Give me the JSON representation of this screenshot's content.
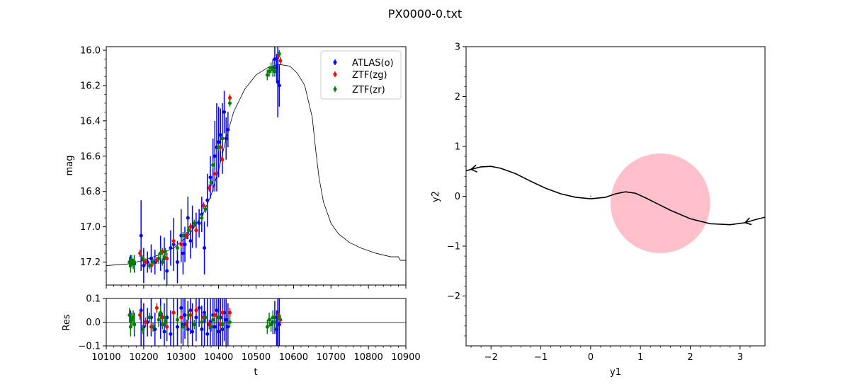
{
  "figure": {
    "title": "PX0000-0.txt"
  },
  "colors": {
    "atlas": "#0000ff",
    "zg": "#ff0000",
    "zr": "#008000",
    "model": "#000000",
    "source": "#ffc0cb",
    "traj": "#000000"
  },
  "chart_data": [
    {
      "type": "scatter",
      "panel": "light-curve",
      "xlabel": "",
      "ylabel": "mag",
      "xlim": [
        10100,
        10900
      ],
      "ylim": [
        17.33,
        15.98
      ],
      "inverted_y": true,
      "yticks": [
        "16.0",
        "16.2",
        "16.4",
        "16.6",
        "16.8",
        "17.0",
        "17.2"
      ],
      "legend": {
        "placement": "top-right",
        "entries": [
          "ATLAS(o)",
          "ZTF(zg)",
          "ZTF(zr)"
        ]
      },
      "model": {
        "name": "",
        "x": [
          10100,
          10160,
          10200,
          10240,
          10280,
          10320,
          10360,
          10380,
          10400,
          10420,
          10440,
          10470,
          10500,
          10530,
          10560,
          10590,
          10610,
          10630,
          10650,
          10660,
          10668,
          10680,
          10700,
          10720,
          10750,
          10780,
          10820,
          10860,
          10880,
          10885,
          10900
        ],
        "y": [
          17.22,
          17.21,
          17.19,
          17.16,
          17.12,
          17.05,
          16.92,
          16.82,
          16.68,
          16.5,
          16.35,
          16.22,
          16.14,
          16.1,
          16.08,
          16.09,
          16.13,
          16.2,
          16.38,
          16.58,
          16.72,
          16.86,
          16.98,
          17.04,
          17.09,
          17.12,
          17.15,
          17.17,
          17.17,
          17.19,
          17.19
        ]
      },
      "series": [
        {
          "name": "ATLAS(o)",
          "x": [
            10165,
            10175,
            10193,
            10200,
            10210,
            10220,
            10230,
            10245,
            10255,
            10262,
            10272,
            10280,
            10290,
            10300,
            10305,
            10310,
            10318,
            10325,
            10330,
            10340,
            10348,
            10355,
            10362,
            10370,
            10378,
            10385,
            10390,
            10395,
            10400,
            10405,
            10410,
            10415,
            10420,
            10425,
            10545,
            10550,
            10555,
            10558,
            10562
          ],
          "y": [
            17.2,
            17.21,
            17.05,
            17.22,
            17.2,
            17.18,
            17.2,
            17.15,
            17.18,
            17.25,
            17.12,
            17.1,
            17.2,
            17.05,
            17.15,
            17.1,
            16.95,
            17.08,
            17.0,
            17.02,
            16.98,
            16.93,
            17.12,
            16.85,
            16.72,
            16.65,
            16.6,
            16.55,
            16.52,
            16.48,
            16.5,
            16.35,
            16.5,
            16.45,
            16.1,
            16.05,
            16.1,
            16.18,
            16.2
          ],
          "err": [
            0.04,
            0.05,
            0.2,
            0.1,
            0.06,
            0.08,
            0.07,
            0.1,
            0.12,
            0.1,
            0.1,
            0.15,
            0.12,
            0.15,
            0.12,
            0.1,
            0.12,
            0.1,
            0.12,
            0.1,
            0.08,
            0.1,
            0.15,
            0.15,
            0.12,
            0.15,
            0.2,
            0.25,
            0.2,
            0.15,
            0.2,
            0.12,
            0.12,
            0.1,
            0.05,
            0.07,
            0.08,
            0.2,
            0.12
          ]
        },
        {
          "name": "ZTF(zg)",
          "x": [
            10190,
            10205,
            10220,
            10235,
            10250,
            10262,
            10280,
            10300,
            10315,
            10325,
            10340,
            10360,
            10375,
            10390,
            10405,
            10410,
            10430,
            10560,
            10565
          ],
          "y": [
            17.15,
            17.2,
            17.22,
            17.19,
            17.14,
            17.18,
            17.08,
            17.1,
            17.05,
            17.0,
            17.02,
            16.88,
            16.78,
            16.7,
            16.55,
            16.62,
            16.27,
            16.03,
            16.06
          ],
          "err": [
            0.02,
            0.02,
            0.02,
            0.02,
            0.02,
            0.02,
            0.02,
            0.02,
            0.02,
            0.02,
            0.02,
            0.02,
            0.02,
            0.02,
            0.02,
            0.02,
            0.02,
            0.02,
            0.02
          ]
        },
        {
          "name": "ZTF(zr)",
          "x": [
            10162,
            10165,
            10168,
            10172,
            10175,
            10198,
            10215,
            10225,
            10240,
            10245,
            10250,
            10255,
            10258,
            10290,
            10305,
            10320,
            10335,
            10355,
            10365,
            10380,
            10385,
            10400,
            10410,
            10430,
            10530,
            10535,
            10540,
            10545,
            10550,
            10562
          ],
          "y": [
            17.2,
            17.22,
            17.19,
            17.21,
            17.2,
            17.18,
            17.22,
            17.2,
            17.18,
            17.15,
            17.2,
            17.17,
            17.14,
            17.12,
            17.05,
            17.02,
            16.98,
            16.95,
            16.9,
            16.75,
            16.65,
            16.55,
            16.5,
            16.3,
            16.14,
            16.12,
            16.1,
            16.11,
            16.12,
            16.02
          ],
          "err": [
            0.03,
            0.04,
            0.03,
            0.03,
            0.04,
            0.02,
            0.02,
            0.02,
            0.03,
            0.03,
            0.02,
            0.02,
            0.02,
            0.02,
            0.02,
            0.02,
            0.02,
            0.02,
            0.02,
            0.02,
            0.02,
            0.02,
            0.02,
            0.02,
            0.03,
            0.03,
            0.03,
            0.03,
            0.03,
            0.02
          ]
        }
      ]
    },
    {
      "type": "scatter",
      "panel": "residuals",
      "xlabel": "t",
      "ylabel": "Res",
      "xlim": [
        10100,
        10900
      ],
      "ylim": [
        -0.1,
        0.1
      ],
      "xticks": [
        "10100",
        "10200",
        "10300",
        "10400",
        "10500",
        "10600",
        "10700",
        "10800",
        "10900"
      ],
      "yticks": [
        "0.1",
        "0.0",
        "−0.1"
      ],
      "series": [
        {
          "name": "ATLAS(o)",
          "x": [
            10165,
            10175,
            10193,
            10200,
            10210,
            10220,
            10230,
            10245,
            10255,
            10262,
            10272,
            10280,
            10290,
            10300,
            10305,
            10310,
            10318,
            10325,
            10330,
            10340,
            10348,
            10355,
            10362,
            10370,
            10378,
            10385,
            10390,
            10395,
            10400,
            10405,
            10410,
            10415,
            10420,
            10425,
            10545,
            10550,
            10555,
            10558,
            10562
          ],
          "y": [
            0.01,
            -0.01,
            0.05,
            -0.02,
            0.0,
            0.02,
            -0.03,
            0.03,
            -0.04,
            0.02,
            -0.05,
            0.04,
            -0.02,
            0.06,
            -0.01,
            0.03,
            -0.03,
            0.05,
            -0.04,
            0.02,
            0.06,
            -0.03,
            0.04,
            -0.05,
            0.0,
            0.03,
            -0.02,
            0.05,
            -0.04,
            0.02,
            -0.03,
            0.04,
            0.01,
            -0.02,
            0.0,
            0.02,
            -0.03,
            0.04,
            -0.01
          ],
          "err": [
            0.04,
            0.05,
            0.2,
            0.1,
            0.06,
            0.08,
            0.07,
            0.1,
            0.12,
            0.1,
            0.1,
            0.15,
            0.12,
            0.15,
            0.12,
            0.1,
            0.12,
            0.1,
            0.12,
            0.1,
            0.08,
            0.1,
            0.15,
            0.15,
            0.12,
            0.15,
            0.2,
            0.25,
            0.2,
            0.15,
            0.2,
            0.12,
            0.12,
            0.1,
            0.05,
            0.07,
            0.08,
            0.2,
            0.12
          ]
        },
        {
          "name": "ZTF(zg)",
          "x": [
            10190,
            10205,
            10220,
            10235,
            10250,
            10262,
            10280,
            10300,
            10315,
            10325,
            10340,
            10360,
            10375,
            10390,
            10405,
            10410,
            10430,
            10560,
            10565
          ],
          "y": [
            0.03,
            0.0,
            -0.02,
            0.06,
            0.02,
            -0.02,
            0.04,
            0.02,
            -0.01,
            0.03,
            0.05,
            0.02,
            -0.01,
            0.03,
            -0.01,
            0.04,
            0.04,
            0.03,
            0.01
          ],
          "err": [
            0.02,
            0.02,
            0.02,
            0.02,
            0.02,
            0.02,
            0.02,
            0.02,
            0.02,
            0.02,
            0.02,
            0.02,
            0.02,
            0.02,
            0.02,
            0.02,
            0.02,
            0.02,
            0.02
          ]
        },
        {
          "name": "ZTF(zr)",
          "x": [
            10162,
            10165,
            10168,
            10172,
            10175,
            10198,
            10215,
            10225,
            10240,
            10245,
            10250,
            10255,
            10258,
            10290,
            10305,
            10320,
            10335,
            10355,
            10365,
            10380,
            10385,
            10400,
            10410,
            10430,
            10530,
            10535,
            10540,
            10545,
            10550,
            10562
          ],
          "y": [
            0.03,
            -0.02,
            0.01,
            0.02,
            -0.01,
            -0.03,
            0.02,
            -0.02,
            0.01,
            0.04,
            -0.01,
            0.02,
            0.0,
            0.01,
            -0.02,
            0.03,
            -0.01,
            0.0,
            0.02,
            -0.02,
            0.01,
            0.02,
            -0.01,
            0.0,
            -0.02,
            0.01,
            -0.01,
            0.02,
            0.0,
            0.02
          ],
          "err": [
            0.03,
            0.04,
            0.03,
            0.03,
            0.04,
            0.02,
            0.02,
            0.02,
            0.03,
            0.03,
            0.02,
            0.02,
            0.02,
            0.02,
            0.02,
            0.02,
            0.02,
            0.02,
            0.02,
            0.02,
            0.02,
            0.02,
            0.02,
            0.02,
            0.03,
            0.03,
            0.03,
            0.03,
            0.03,
            0.02
          ]
        }
      ]
    },
    {
      "type": "line",
      "panel": "trajectory",
      "xlabel": "y1",
      "ylabel": "y2",
      "xlim": [
        -2.5,
        3.5
      ],
      "ylim": [
        -3.0,
        3.0
      ],
      "xticks": [
        "−2",
        "−1",
        "0",
        "1",
        "2",
        "3"
      ],
      "yticks": [
        "3",
        "2",
        "1",
        "0",
        "−1",
        "−2"
      ],
      "source": {
        "center": [
          1.4,
          -0.14
        ],
        "radius": 1.0
      },
      "lens_point": [
        0.0,
        0.0
      ],
      "trajectory": {
        "name": "",
        "x": [
          -2.6,
          -2.4,
          -2.2,
          -2.0,
          -1.8,
          -1.5,
          -1.2,
          -0.9,
          -0.6,
          -0.3,
          0.0,
          0.3,
          0.5,
          0.7,
          0.9,
          1.1,
          1.3,
          1.6,
          2.0,
          2.4,
          2.8,
          3.1,
          3.3,
          3.5
        ],
        "y": [
          0.48,
          0.54,
          0.59,
          0.6,
          0.56,
          0.45,
          0.3,
          0.16,
          0.05,
          -0.02,
          -0.05,
          -0.02,
          0.05,
          0.09,
          0.06,
          -0.03,
          -0.13,
          -0.28,
          -0.45,
          -0.55,
          -0.57,
          -0.53,
          -0.47,
          -0.42
        ]
      }
    }
  ]
}
